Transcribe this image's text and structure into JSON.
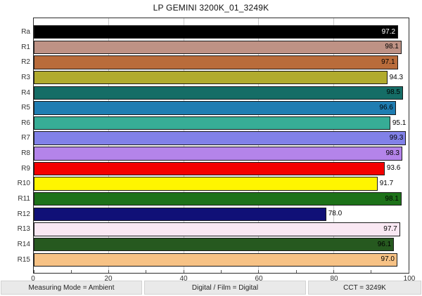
{
  "chart_data": {
    "type": "bar",
    "orientation": "horizontal",
    "title": "LP GEMINI 3200K_01_3249K",
    "categories": [
      "Ra",
      "R1",
      "R2",
      "R3",
      "R4",
      "R5",
      "R6",
      "R7",
      "R8",
      "R9",
      "R10",
      "R11",
      "R12",
      "R13",
      "R14",
      "R15"
    ],
    "values": [
      97.2,
      98.1,
      97.1,
      94.3,
      98.5,
      96.6,
      95.1,
      99.3,
      98.3,
      93.6,
      91.7,
      98.1,
      78.0,
      97.7,
      96.1,
      97.0
    ],
    "bar_colors": [
      "#000000",
      "#BE9285",
      "#B96C3B",
      "#B1AB2E",
      "#156D66",
      "#1F7DB2",
      "#37AD96",
      "#8181E8",
      "#B484EA",
      "#F40000",
      "#FFF500",
      "#1D7219",
      "#101077",
      "#F9E8F3",
      "#26591F",
      "#F7C285"
    ],
    "xlim": [
      0,
      100
    ],
    "x_ticks": [
      0,
      20,
      40,
      60,
      80,
      100
    ],
    "minor_tick_step": 10,
    "grid": "vertical-major-lines",
    "legend": "none",
    "value_label_decimals": 1
  },
  "status_bar": {
    "items": [
      "Measuring Mode = Ambient",
      "Digital / Film = Digital",
      "CCT = 3249K"
    ]
  }
}
